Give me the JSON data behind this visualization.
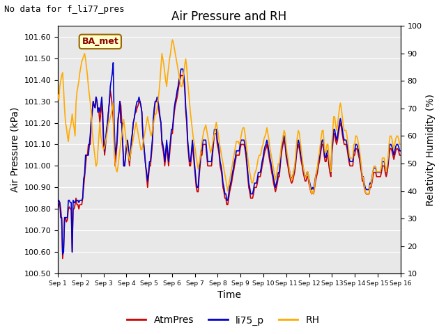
{
  "title": "Air Pressure and RH",
  "note": "No data for f_li77_pres",
  "legend_label": "BA_met",
  "xlabel": "Time",
  "ylabel_left": "Air Pressure (kPa)",
  "ylabel_right": "Relativity Humidity (%)",
  "ylim_left": [
    100.5,
    101.65
  ],
  "ylim_right": [
    10,
    100
  ],
  "yticks_left": [
    100.5,
    100.6,
    100.7,
    100.8,
    100.9,
    101.0,
    101.1,
    101.2,
    101.3,
    101.4,
    101.5,
    101.6
  ],
  "yticks_right": [
    10,
    20,
    30,
    40,
    50,
    60,
    70,
    80,
    90,
    100
  ],
  "bg_color": "#e8e8e8",
  "line_colors": {
    "AtmPres": "#cc0000",
    "li75_p": "#0000cc",
    "RH": "#ffaa00"
  },
  "line_widths": {
    "AtmPres": 1.2,
    "li75_p": 1.2,
    "RH": 1.2
  },
  "ba_met_bg": "#ffffcc",
  "ba_met_edge": "#996600",
  "tick_fontsize": 8,
  "label_fontsize": 10,
  "title_fontsize": 12,
  "note_fontsize": 9,
  "xtick_labels": [
    "Sep 1",
    "Sep 2",
    "Sep 3",
    "Sep 4",
    "Sep 5",
    "Sep 6",
    "Sep 7",
    "Sep 8",
    "Sep 9",
    "Sep 10",
    "Sep 11",
    "Sep 12",
    "Sep 13",
    "Sep 14",
    "Sep 15",
    "Sep 16"
  ],
  "series": {
    "AtmPres": [
      100.79,
      100.82,
      100.83,
      100.8,
      100.75,
      100.57,
      100.62,
      100.75,
      100.76,
      100.74,
      100.75,
      100.8,
      100.81,
      100.8,
      100.8,
      100.6,
      100.8,
      100.8,
      100.82,
      100.85,
      100.82,
      100.82,
      100.8,
      100.82,
      100.82,
      100.82,
      100.85,
      100.9,
      100.95,
      101.0,
      101.05,
      101.05,
      101.1,
      101.1,
      101.1,
      101.2,
      101.25,
      101.3,
      101.28,
      101.27,
      101.32,
      101.3,
      101.25,
      101.25,
      101.2,
      101.25,
      101.3,
      101.2,
      101.1,
      101.05,
      101.1,
      101.15,
      101.2,
      101.25,
      101.3,
      101.35,
      101.32,
      101.28,
      101.22,
      101.1,
      101.0,
      101.05,
      101.1,
      101.2,
      101.25,
      101.3,
      101.28,
      101.2,
      101.1,
      101.0,
      101.0,
      101.05,
      101.1,
      101.1,
      101.05,
      101.0,
      101.05,
      101.1,
      101.15,
      101.2,
      101.22,
      101.25,
      101.25,
      101.27,
      101.28,
      101.3,
      101.3,
      101.28,
      101.25,
      101.15,
      101.1,
      101.05,
      101.0,
      100.95,
      100.9,
      100.95,
      101.0,
      101.0,
      101.05,
      101.1,
      101.2,
      101.25,
      101.3,
      101.3,
      101.3,
      101.28,
      101.25,
      101.22,
      101.2,
      101.1,
      101.08,
      101.05,
      101.0,
      101.05,
      101.1,
      101.05,
      101.0,
      101.05,
      101.1,
      101.15,
      101.15,
      101.2,
      101.25,
      101.28,
      101.3,
      101.32,
      101.35,
      101.38,
      101.4,
      101.42,
      101.42,
      101.42,
      101.4,
      101.35,
      101.25,
      101.2,
      101.1,
      101.05,
      101.0,
      101.0,
      101.05,
      101.1,
      101.05,
      101.0,
      100.95,
      100.9,
      100.88,
      100.88,
      100.95,
      101.0,
      101.05,
      101.05,
      101.1,
      101.1,
      101.1,
      101.1,
      101.05,
      101.0,
      101.0,
      101.0,
      101.0,
      101.0,
      101.05,
      101.1,
      101.15,
      101.15,
      101.15,
      101.1,
      101.08,
      101.05,
      101.0,
      100.98,
      100.95,
      100.9,
      100.88,
      100.85,
      100.85,
      100.82,
      100.82,
      100.85,
      100.88,
      100.9,
      100.92,
      100.95,
      100.97,
      101.0,
      101.02,
      101.05,
      101.05,
      101.05,
      101.05,
      101.08,
      101.1,
      101.1,
      101.1,
      101.1,
      101.08,
      101.05,
      101.0,
      100.95,
      100.9,
      100.88,
      100.85,
      100.85,
      100.85,
      100.87,
      100.9,
      100.9,
      100.9,
      100.92,
      100.95,
      100.95,
      100.95,
      100.97,
      101.0,
      101.02,
      101.05,
      101.07,
      101.08,
      101.1,
      101.08,
      101.05,
      101.02,
      101.0,
      100.97,
      100.95,
      100.92,
      100.9,
      100.88,
      100.9,
      100.92,
      100.95,
      100.95,
      101.0,
      101.05,
      101.08,
      101.1,
      101.12,
      101.1,
      101.05,
      101.02,
      101.0,
      100.97,
      100.95,
      100.93,
      100.92,
      100.93,
      100.95,
      100.97,
      101.0,
      101.05,
      101.08,
      101.1,
      101.08,
      101.05,
      101.02,
      101.0,
      100.97,
      100.95,
      100.93,
      100.93,
      100.95,
      100.95,
      100.92,
      100.9,
      100.88,
      100.87,
      100.88,
      100.87,
      100.9,
      100.93,
      100.95,
      100.97,
      101.0,
      101.02,
      101.05,
      101.08,
      101.1,
      101.1,
      101.05,
      101.02,
      101.02,
      101.05,
      101.05,
      101.0,
      100.97,
      100.95,
      101.05,
      101.1,
      101.15,
      101.15,
      101.12,
      101.1,
      101.12,
      101.15,
      101.18,
      101.2,
      101.18,
      101.15,
      101.12,
      101.1,
      101.1,
      101.1,
      101.08,
      101.05,
      101.02,
      101.0,
      101.0,
      101.0,
      101.0,
      101.05,
      101.05,
      101.08,
      101.08,
      101.07,
      101.05,
      101.03,
      101.0,
      100.97,
      100.93,
      100.93,
      100.9,
      100.88,
      100.87,
      100.87,
      100.87,
      100.87,
      100.9,
      100.9,
      100.92,
      100.95,
      100.97,
      100.97,
      100.97,
      100.95,
      100.95,
      100.95,
      100.95,
      100.95,
      100.97,
      101.0,
      101.0,
      101.0,
      100.97,
      100.95,
      100.97,
      101.0,
      101.05,
      101.08,
      101.08,
      101.07,
      101.05,
      101.03,
      101.05,
      101.07,
      101.08,
      101.08,
      101.07,
      101.05,
      101.05
    ],
    "li75_p": [
      100.83,
      100.84,
      100.83,
      100.76,
      100.76,
      100.59,
      100.6,
      100.76,
      100.76,
      100.76,
      100.76,
      100.84,
      100.84,
      100.83,
      100.83,
      100.6,
      100.84,
      100.83,
      100.83,
      100.84,
      100.84,
      100.84,
      100.83,
      100.84,
      100.84,
      100.84,
      100.85,
      100.94,
      100.96,
      101.05,
      101.05,
      101.05,
      101.05,
      101.1,
      101.15,
      101.22,
      101.25,
      101.3,
      101.28,
      101.27,
      101.32,
      101.3,
      101.25,
      101.27,
      101.25,
      101.28,
      101.32,
      101.25,
      101.12,
      101.07,
      101.12,
      101.17,
      101.2,
      101.25,
      101.3,
      101.37,
      101.4,
      101.43,
      101.48,
      101.2,
      101.05,
      101.08,
      101.12,
      101.22,
      101.25,
      101.3,
      101.2,
      101.2,
      101.1,
      101.0,
      101.0,
      101.05,
      101.1,
      101.12,
      101.08,
      101.02,
      101.05,
      101.12,
      101.15,
      101.2,
      101.22,
      101.25,
      101.28,
      101.3,
      101.3,
      101.32,
      101.3,
      101.28,
      101.25,
      101.15,
      101.1,
      101.05,
      101.0,
      100.97,
      100.93,
      100.97,
      101.02,
      101.02,
      101.07,
      101.12,
      101.22,
      101.27,
      101.3,
      101.3,
      101.32,
      101.3,
      101.27,
      101.23,
      101.2,
      101.12,
      101.1,
      101.07,
      101.02,
      101.07,
      101.12,
      101.07,
      101.02,
      101.08,
      101.12,
      101.17,
      101.17,
      101.22,
      101.27,
      101.3,
      101.32,
      101.35,
      101.37,
      101.4,
      101.42,
      101.45,
      101.45,
      101.45,
      101.42,
      101.37,
      101.27,
      101.22,
      101.12,
      101.07,
      101.02,
      101.02,
      101.07,
      101.12,
      101.07,
      101.02,
      100.97,
      100.92,
      100.9,
      100.9,
      100.97,
      101.02,
      101.07,
      101.07,
      101.12,
      101.12,
      101.12,
      101.12,
      101.07,
      101.02,
      101.02,
      101.02,
      101.02,
      101.02,
      101.07,
      101.12,
      101.17,
      101.17,
      101.17,
      101.12,
      101.1,
      101.07,
      101.02,
      101.0,
      100.97,
      100.92,
      100.9,
      100.87,
      100.87,
      100.84,
      100.84,
      100.87,
      100.9,
      100.92,
      100.94,
      100.97,
      100.99,
      101.02,
      101.04,
      101.07,
      101.07,
      101.07,
      101.07,
      101.1,
      101.12,
      101.12,
      101.12,
      101.12,
      101.1,
      101.07,
      101.02,
      100.97,
      100.92,
      100.9,
      100.87,
      100.87,
      100.87,
      100.89,
      100.92,
      100.92,
      100.92,
      100.94,
      100.97,
      100.97,
      100.97,
      100.99,
      101.02,
      101.04,
      101.07,
      101.09,
      101.1,
      101.12,
      101.1,
      101.07,
      101.04,
      101.02,
      100.99,
      100.97,
      100.94,
      100.92,
      100.9,
      100.92,
      100.94,
      100.97,
      100.97,
      101.02,
      101.07,
      101.1,
      101.12,
      101.14,
      101.12,
      101.07,
      101.04,
      101.02,
      100.99,
      100.97,
      100.95,
      100.94,
      100.95,
      100.97,
      100.99,
      101.02,
      101.07,
      101.1,
      101.12,
      101.1,
      101.07,
      101.04,
      101.02,
      100.99,
      100.97,
      100.95,
      100.95,
      100.97,
      100.97,
      100.94,
      100.92,
      100.9,
      100.89,
      100.9,
      100.89,
      100.92,
      100.95,
      100.97,
      100.99,
      101.02,
      101.04,
      101.07,
      101.1,
      101.12,
      101.12,
      101.07,
      101.04,
      101.04,
      101.07,
      101.07,
      101.02,
      100.99,
      100.97,
      101.07,
      101.12,
      101.17,
      101.17,
      101.14,
      101.12,
      101.14,
      101.17,
      101.2,
      101.22,
      101.2,
      101.17,
      101.14,
      101.12,
      101.12,
      101.12,
      101.1,
      101.07,
      101.04,
      101.02,
      101.02,
      101.02,
      101.02,
      101.07,
      101.07,
      101.1,
      101.1,
      101.09,
      101.07,
      101.05,
      101.02,
      100.99,
      100.95,
      100.95,
      100.92,
      100.9,
      100.89,
      100.89,
      100.89,
      100.89,
      100.92,
      100.92,
      100.94,
      100.97,
      100.99,
      100.99,
      100.99,
      100.97,
      100.97,
      100.97,
      100.97,
      100.97,
      100.99,
      101.02,
      101.02,
      101.02,
      100.99,
      100.97,
      100.99,
      101.02,
      101.07,
      101.1,
      101.1,
      101.09,
      101.07,
      101.05,
      101.07,
      101.09,
      101.1,
      101.1,
      101.09,
      101.07,
      101.07
    ],
    "RH": [
      75.0,
      73.0,
      78.0,
      80.0,
      82.0,
      83.0,
      77.0,
      70.0,
      65.0,
      63.0,
      60.0,
      58.0,
      62.0,
      63.0,
      65.0,
      68.0,
      65.0,
      63.0,
      60.0,
      72.0,
      76.0,
      78.0,
      80.0,
      83.0,
      85.0,
      87.0,
      88.0,
      89.0,
      90.0,
      88.0,
      85.0,
      82.0,
      78.0,
      75.0,
      72.0,
      68.0,
      62.0,
      58.0,
      55.0,
      52.0,
      49.0,
      50.0,
      55.0,
      60.0,
      65.0,
      60.0,
      58.0,
      56.0,
      55.0,
      56.0,
      58.0,
      60.0,
      62.0,
      65.0,
      65.0,
      67.0,
      68.0,
      70.0,
      72.0,
      55.0,
      50.0,
      48.0,
      47.0,
      49.0,
      52.0,
      55.0,
      58.0,
      60.0,
      63.0,
      66.0,
      63.0,
      60.0,
      57.0,
      55.0,
      53.0,
      51.0,
      53.0,
      55.0,
      57.0,
      59.0,
      61.0,
      63.0,
      65.0,
      63.0,
      61.0,
      59.0,
      57.0,
      55.0,
      55.0,
      57.0,
      59.0,
      61.0,
      63.0,
      65.0,
      67.0,
      65.0,
      63.0,
      61.0,
      60.0,
      62.0,
      64.0,
      66.0,
      68.0,
      68.0,
      70.0,
      73.0,
      76.0,
      80.0,
      85.0,
      90.0,
      88.0,
      86.0,
      83.0,
      80.0,
      78.0,
      82.0,
      85.0,
      88.0,
      90.0,
      93.0,
      95.0,
      94.0,
      92.0,
      90.0,
      88.0,
      86.0,
      84.0,
      82.0,
      80.0,
      78.0,
      78.0,
      80.0,
      83.0,
      86.0,
      88.0,
      85.0,
      80.0,
      76.0,
      72.0,
      68.0,
      65.0,
      62.0,
      59.0,
      57.0,
      55.0,
      52.0,
      50.0,
      48.0,
      50.0,
      52.0,
      55.0,
      58.0,
      60.0,
      62.0,
      63.0,
      64.0,
      62.0,
      60.0,
      58.0,
      56.0,
      54.0,
      55.0,
      57.0,
      59.0,
      61.0,
      63.0,
      65.0,
      63.0,
      61.0,
      58.0,
      56.0,
      54.0,
      52.0,
      50.0,
      48.0,
      46.0,
      44.0,
      42.0,
      40.0,
      42.0,
      44.0,
      46.0,
      48.0,
      50.0,
      52.0,
      54.0,
      56.0,
      58.0,
      58.0,
      58.0,
      57.0,
      58.0,
      60.0,
      62.0,
      63.0,
      63.0,
      61.0,
      58.0,
      55.0,
      52.0,
      49.0,
      47.0,
      45.0,
      43.0,
      43.0,
      44.0,
      46.0,
      47.0,
      48.0,
      50.0,
      52.0,
      53.0,
      53.0,
      54.0,
      56.0,
      57.0,
      59.0,
      60.0,
      61.0,
      63.0,
      61.0,
      59.0,
      56.0,
      54.0,
      52.0,
      50.0,
      48.0,
      46.0,
      44.0,
      46.0,
      48.0,
      50.0,
      50.0,
      53.0,
      56.0,
      58.0,
      60.0,
      62.0,
      61.0,
      57.0,
      54.0,
      52.0,
      49.0,
      47.0,
      45.0,
      44.0,
      45.0,
      47.0,
      49.0,
      52.0,
      57.0,
      60.0,
      62.0,
      61.0,
      58.0,
      55.0,
      52.0,
      49.0,
      47.0,
      45.0,
      45.0,
      47.0,
      47.0,
      44.0,
      42.0,
      40.0,
      39.0,
      40.0,
      39.0,
      42.0,
      45.0,
      47.0,
      49.0,
      52.0,
      54.0,
      57.0,
      60.0,
      62.0,
      62.0,
      57.0,
      54.0,
      54.0,
      57.0,
      57.0,
      52.0,
      49.0,
      47.0,
      57.0,
      62.0,
      67.0,
      67.0,
      64.0,
      62.0,
      64.0,
      67.0,
      70.0,
      72.0,
      70.0,
      67.0,
      64.0,
      62.0,
      62.0,
      62.0,
      60.0,
      57.0,
      54.0,
      52.0,
      52.0,
      52.0,
      52.0,
      57.0,
      57.0,
      60.0,
      60.0,
      59.0,
      57.0,
      55.0,
      52.0,
      49.0,
      45.0,
      45.0,
      42.0,
      40.0,
      39.0,
      39.0,
      39.0,
      39.0,
      42.0,
      42.0,
      44.0,
      47.0,
      49.0,
      49.0,
      49.0,
      47.0,
      47.0,
      47.0,
      47.0,
      47.0,
      49.0,
      52.0,
      52.0,
      52.0,
      49.0,
      47.0,
      49.0,
      52.0,
      57.0,
      60.0,
      60.0,
      59.0,
      57.0,
      55.0,
      57.0,
      59.0,
      60.0,
      60.0,
      59.0,
      57.0,
      57.0
    ]
  }
}
